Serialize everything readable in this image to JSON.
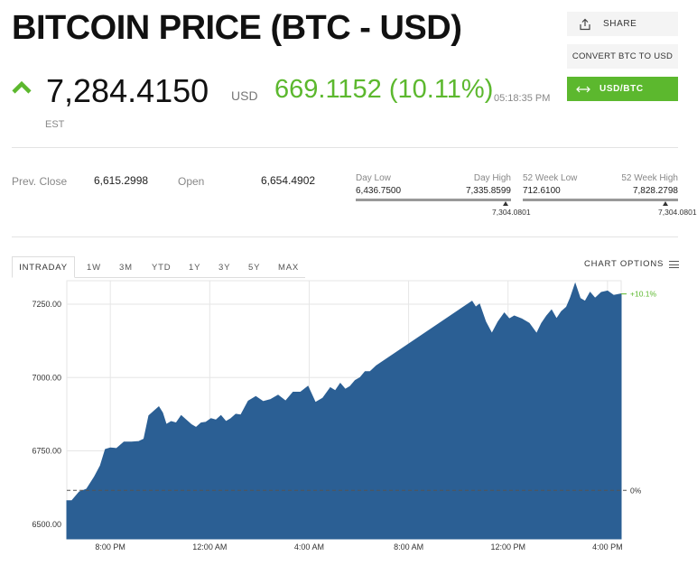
{
  "header": {
    "title": "BITCOIN PRICE (BTC - USD)",
    "price": "7,284.4150",
    "currency": "USD",
    "change": "669.1152 (10.11%)",
    "time": "05:18:35 PM",
    "timezone": "EST",
    "change_direction_icon": "up-arrow-icon"
  },
  "actions": {
    "share_label": "SHARE",
    "convert_label": "CONVERT BTC TO USD",
    "pair_label": "USD/BTC"
  },
  "stats": {
    "prev_close_label": "Prev. Close",
    "prev_close_value": "6,615.2998",
    "open_label": "Open",
    "open_value": "6,654.4902",
    "day_low_label": "Day Low",
    "day_low_value": "6,436.7500",
    "day_high_label": "Day High",
    "day_high_value": "7,335.8599",
    "day_current": "7,304.0801",
    "week52_low_label": "52 Week Low",
    "week52_low_value": "712.6100",
    "week52_high_label": "52 Week High",
    "week52_high_value": "7,828.2798",
    "week52_current": "7,304.0801"
  },
  "tabs": [
    "INTRADAY",
    "1W",
    "3M",
    "YTD",
    "1Y",
    "3Y",
    "5Y",
    "MAX"
  ],
  "chart_options_label": "CHART OPTIONS",
  "colors": {
    "accent_green": "#5cb82e",
    "chart_fill": "#2b5f94"
  },
  "chart_data": {
    "type": "area",
    "x_ticks": [
      "8:00 PM",
      "12:00 AM",
      "4:00 AM",
      "8:00 AM",
      "12:00 PM",
      "4:00 PM"
    ],
    "y_ticks": [
      "6500.00",
      "6750.00",
      "7000.00",
      "7250.00"
    ],
    "ylim": [
      6450,
      7330
    ],
    "x_range_hours": [
      0,
      22.3
    ],
    "x_tick_hours": [
      1.75,
      5.75,
      9.75,
      13.75,
      17.75,
      21.75
    ],
    "reference_value": 6615.3,
    "reference_label": "0%",
    "last_label": "+10.1%",
    "grid": true,
    "x": [
      0,
      0.2,
      0.5,
      0.8,
      1.1,
      1.35,
      1.55,
      1.75,
      2.0,
      2.3,
      2.6,
      2.9,
      3.1,
      3.3,
      3.5,
      3.7,
      3.85,
      4.0,
      4.2,
      4.4,
      4.6,
      4.8,
      5.0,
      5.2,
      5.4,
      5.6,
      5.8,
      6.0,
      6.2,
      6.4,
      6.6,
      6.8,
      7.0,
      7.3,
      7.6,
      7.9,
      8.2,
      8.5,
      8.8,
      9.1,
      9.4,
      9.7,
      10.0,
      10.3,
      10.6,
      10.8,
      11.0,
      11.2,
      11.4,
      11.6,
      11.8,
      12.0,
      12.2,
      12.45,
      16.3,
      16.45,
      16.6,
      16.85,
      17.1,
      17.35,
      17.6,
      17.8,
      18.0,
      18.3,
      18.6,
      18.9,
      19.1,
      19.3,
      19.5,
      19.7,
      19.9,
      20.1,
      20.25,
      20.45,
      20.65,
      20.85,
      21.05,
      21.25,
      21.5,
      21.75,
      22.0,
      22.3
    ],
    "y": [
      6580,
      6580,
      6610,
      6620,
      6660,
      6700,
      6755,
      6760,
      6758,
      6780,
      6780,
      6782,
      6790,
      6870,
      6885,
      6900,
      6880,
      6840,
      6850,
      6845,
      6870,
      6855,
      6840,
      6830,
      6845,
      6848,
      6860,
      6855,
      6870,
      6850,
      6860,
      6875,
      6872,
      6920,
      6935,
      6918,
      6925,
      6940,
      6920,
      6950,
      6950,
      6970,
      6915,
      6930,
      6965,
      6955,
      6980,
      6960,
      6970,
      6990,
      7000,
      7020,
      7020,
      7040,
      7260,
      7240,
      7250,
      7190,
      7150,
      7190,
      7220,
      7200,
      7210,
      7200,
      7185,
      7150,
      7185,
      7210,
      7230,
      7200,
      7225,
      7240,
      7270,
      7320,
      7270,
      7260,
      7290,
      7270,
      7290,
      7295,
      7280,
      7285
    ]
  }
}
